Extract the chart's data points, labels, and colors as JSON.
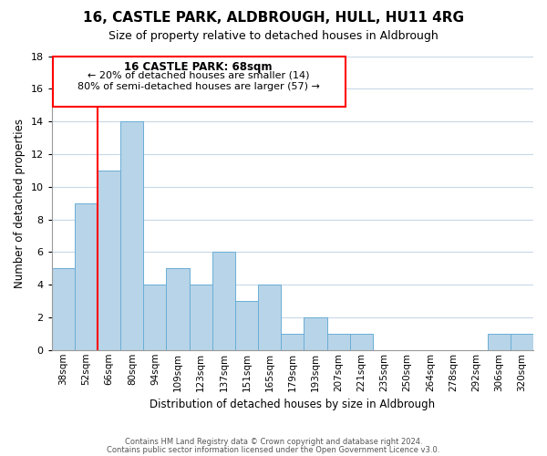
{
  "title": "16, CASTLE PARK, ALDBROUGH, HULL, HU11 4RG",
  "subtitle": "Size of property relative to detached houses in Aldbrough",
  "xlabel": "Distribution of detached houses by size in Aldbrough",
  "ylabel": "Number of detached properties",
  "bar_color": "#b8d4e8",
  "bar_edge_color": "#6aaed6",
  "bins": [
    "38sqm",
    "52sqm",
    "66sqm",
    "80sqm",
    "94sqm",
    "109sqm",
    "123sqm",
    "137sqm",
    "151sqm",
    "165sqm",
    "179sqm",
    "193sqm",
    "207sqm",
    "221sqm",
    "235sqm",
    "250sqm",
    "264sqm",
    "278sqm",
    "292sqm",
    "306sqm",
    "320sqm"
  ],
  "counts": [
    5,
    9,
    11,
    14,
    4,
    5,
    4,
    6,
    3,
    4,
    1,
    2,
    1,
    1,
    0,
    0,
    0,
    0,
    0,
    1,
    1
  ],
  "ylim": [
    0,
    18
  ],
  "yticks": [
    0,
    2,
    4,
    6,
    8,
    10,
    12,
    14,
    16,
    18
  ],
  "annotation_title": "16 CASTLE PARK: 68sqm",
  "annotation_line1": "← 20% of detached houses are smaller (14)",
  "annotation_line2": "80% of semi-detached houses are larger (57) →",
  "footer1": "Contains HM Land Registry data © Crown copyright and database right 2024.",
  "footer2": "Contains public sector information licensed under the Open Government Licence v3.0.",
  "background_color": "#ffffff",
  "grid_color": "#c8d8e8"
}
